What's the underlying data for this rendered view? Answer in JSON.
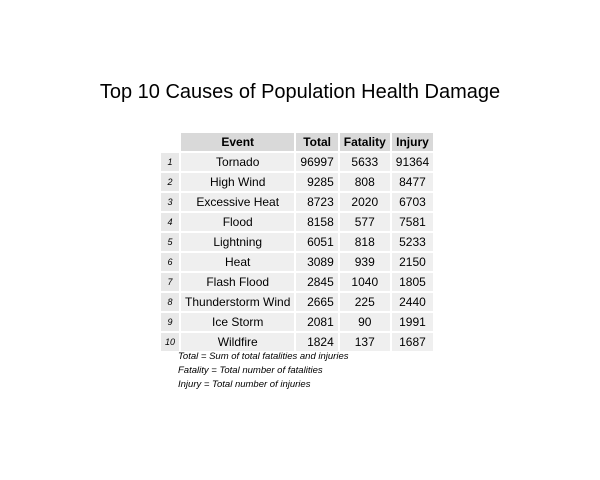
{
  "chart_data": {
    "type": "table",
    "title": "Top 10 Causes of Population Health Damage",
    "columns": [
      "Event",
      "Total",
      "Fatality",
      "Injury"
    ],
    "rows": [
      {
        "index": "1",
        "event": "Tornado",
        "total": "96997",
        "fatality": "5633",
        "injury": "91364"
      },
      {
        "index": "2",
        "event": "High Wind",
        "total": "9285",
        "fatality": "808",
        "injury": "8477"
      },
      {
        "index": "3",
        "event": "Excessive Heat",
        "total": "8723",
        "fatality": "2020",
        "injury": "6703"
      },
      {
        "index": "4",
        "event": "Flood",
        "total": "8158",
        "fatality": "577",
        "injury": "7581"
      },
      {
        "index": "5",
        "event": "Lightning",
        "total": "6051",
        "fatality": "818",
        "injury": "5233"
      },
      {
        "index": "6",
        "event": "Heat",
        "total": "3089",
        "fatality": "939",
        "injury": "2150"
      },
      {
        "index": "7",
        "event": "Flash Flood",
        "total": "2845",
        "fatality": "1040",
        "injury": "1805"
      },
      {
        "index": "8",
        "event": "Thunderstorm Wind",
        "total": "2665",
        "fatality": "225",
        "injury": "2440"
      },
      {
        "index": "9",
        "event": "Ice Storm",
        "total": "2081",
        "fatality": "90",
        "injury": "1991"
      },
      {
        "index": "10",
        "event": "Wildfire",
        "total": "1824",
        "fatality": "137",
        "injury": "1687"
      }
    ],
    "notes": [
      "Total = Sum of total fatalities and injuries",
      "Fatality = Total number of fatalities",
      "Injury = Total number of injuries"
    ]
  }
}
